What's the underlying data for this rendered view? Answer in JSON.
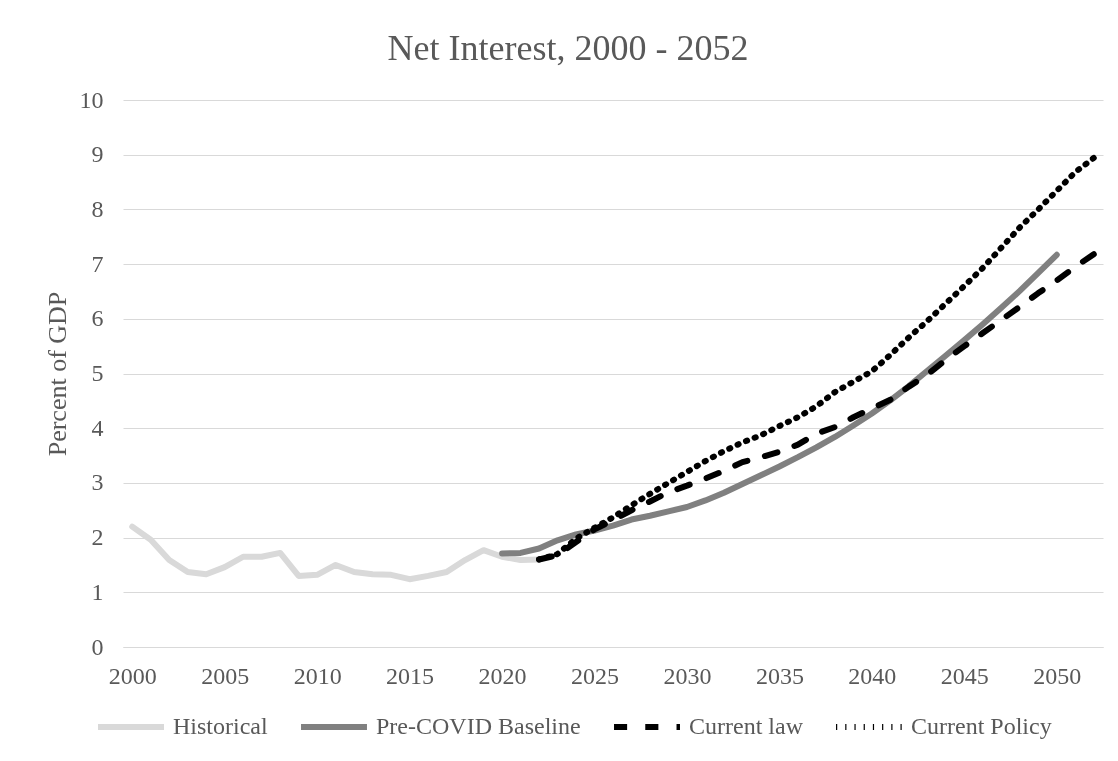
{
  "chart_data": {
    "type": "line",
    "title": "Net Interest, 2000 - 2052",
    "ylabel": "Percent of GDP",
    "xlim": [
      1999.5,
      2052.5
    ],
    "xticks": [
      2000,
      2005,
      2010,
      2015,
      2020,
      2025,
      2030,
      2035,
      2040,
      2045,
      2050
    ],
    "ylim": [
      0,
      10
    ],
    "yticks": [
      0,
      1,
      2,
      3,
      4,
      5,
      6,
      7,
      8,
      9,
      10
    ],
    "grid": "y",
    "legend": "bottom",
    "series": [
      {
        "name": "Historical",
        "color": "#d9d9d9",
        "line_style": "solid",
        "x": [
          2000,
          2001,
          2002,
          2003,
          2004,
          2005,
          2006,
          2007,
          2008,
          2009,
          2010,
          2011,
          2012,
          2013,
          2014,
          2015,
          2016,
          2017,
          2018,
          2019,
          2020,
          2021,
          2022
        ],
        "values": [
          2.2,
          1.96,
          1.59,
          1.37,
          1.33,
          1.46,
          1.65,
          1.65,
          1.72,
          1.3,
          1.32,
          1.5,
          1.37,
          1.33,
          1.32,
          1.24,
          1.3,
          1.37,
          1.59,
          1.77,
          1.65,
          1.59,
          1.6
        ]
      },
      {
        "name": "Pre-COVID Baseline",
        "color": "#808080",
        "line_style": "solid",
        "x": [
          2020,
          2021,
          2022,
          2023,
          2024,
          2025,
          2026,
          2027,
          2028,
          2029,
          2030,
          2031,
          2032,
          2033,
          2034,
          2035,
          2036,
          2037,
          2038,
          2039,
          2040,
          2041,
          2042,
          2043,
          2044,
          2045,
          2046,
          2047,
          2048,
          2049,
          2050
        ],
        "values": [
          1.71,
          1.72,
          1.8,
          1.95,
          2.06,
          2.13,
          2.22,
          2.33,
          2.4,
          2.48,
          2.56,
          2.68,
          2.82,
          2.98,
          3.14,
          3.3,
          3.47,
          3.65,
          3.84,
          4.05,
          4.27,
          4.51,
          4.77,
          5.05,
          5.33,
          5.61,
          5.9,
          6.2,
          6.51,
          6.84,
          7.17
        ]
      },
      {
        "name": "Current law",
        "color": "#000000",
        "line_style": "dashed",
        "x": [
          2022,
          2023,
          2024,
          2025,
          2026,
          2027,
          2028,
          2029,
          2030,
          2031,
          2032,
          2033,
          2034,
          2035,
          2036,
          2037,
          2038,
          2039,
          2040,
          2041,
          2042,
          2043,
          2044,
          2045,
          2046,
          2047,
          2048,
          2049,
          2050,
          2051,
          2052
        ],
        "values": [
          1.6,
          1.68,
          1.92,
          2.15,
          2.32,
          2.5,
          2.66,
          2.83,
          2.95,
          3.08,
          3.22,
          3.38,
          3.47,
          3.57,
          3.7,
          3.9,
          4.02,
          4.2,
          4.36,
          4.52,
          4.76,
          4.98,
          5.25,
          5.5,
          5.74,
          5.98,
          6.22,
          6.47,
          6.7,
          6.95,
          7.18
        ]
      },
      {
        "name": "Current Policy",
        "color": "#000000",
        "line_style": "dotted",
        "x": [
          2022,
          2023,
          2024,
          2025,
          2026,
          2027,
          2028,
          2029,
          2030,
          2031,
          2032,
          2033,
          2034,
          2035,
          2036,
          2037,
          2038,
          2039,
          2040,
          2041,
          2042,
          2043,
          2044,
          2045,
          2046,
          2047,
          2048,
          2049,
          2050,
          2051,
          2052
        ],
        "values": [
          1.6,
          1.7,
          1.98,
          2.18,
          2.37,
          2.59,
          2.8,
          3.0,
          3.2,
          3.4,
          3.58,
          3.74,
          3.87,
          4.04,
          4.2,
          4.4,
          4.66,
          4.85,
          5.04,
          5.34,
          5.66,
          5.96,
          6.28,
          6.6,
          6.93,
          7.3,
          7.67,
          8.0,
          8.34,
          8.68,
          8.94
        ]
      }
    ]
  }
}
